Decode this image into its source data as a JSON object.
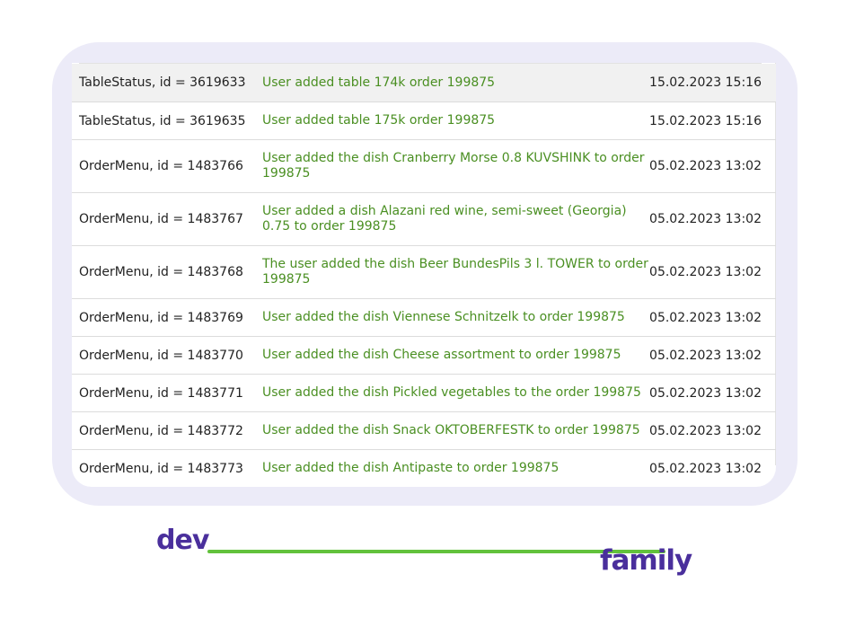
{
  "log": {
    "rows": [
      {
        "entity": "TableStatus, id = 3619633",
        "message": "User added table 174k order 199875",
        "date": "15.02.2023 15:16"
      },
      {
        "entity": "TableStatus, id = 3619635",
        "message": "User added table 175k order 199875",
        "date": "15.02.2023 15:16"
      },
      {
        "entity": "OrderMenu, id = 1483766",
        "message": "User added the dish Cranberry Morse 0.8 KUVSHINK to order 199875",
        "date": "05.02.2023 13:02"
      },
      {
        "entity": "OrderMenu, id = 1483767",
        "message": "User added a dish Alazani red wine, semi-sweet (Georgia) 0.75 to order 199875",
        "date": "05.02.2023 13:02"
      },
      {
        "entity": "OrderMenu, id = 1483768",
        "message": "The user added the dish Beer BundesPils 3 l. TOWER to order 199875",
        "date": "05.02.2023 13:02"
      },
      {
        "entity": "OrderMenu, id = 1483769",
        "message": "User added the dish Viennese Schnitzelk to order 199875",
        "date": "05.02.2023 13:02"
      },
      {
        "entity": "OrderMenu, id = 1483770",
        "message": "User added the dish Cheese assortment to order 199875",
        "date": "05.02.2023 13:02"
      },
      {
        "entity": "OrderMenu, id = 1483771",
        "message": "User added the dish Pickled vegetables to the order 199875",
        "date": "05.02.2023 13:02"
      },
      {
        "entity": "OrderMenu, id = 1483772",
        "message": "User added the dish Snack OKTOBERFESTK to order 199875",
        "date": "05.02.2023 13:02"
      },
      {
        "entity": "OrderMenu, id = 1483773",
        "message": "User added the dish Antipaste to order 199875",
        "date": "05.02.2023 13:02"
      }
    ]
  },
  "branding": {
    "part1": "dev",
    "part2": "family"
  },
  "colors": {
    "message": "#4a8f22",
    "brand": "#4a2f9c",
    "brand_line": "#62c23c",
    "frame": "#ecebf8"
  }
}
